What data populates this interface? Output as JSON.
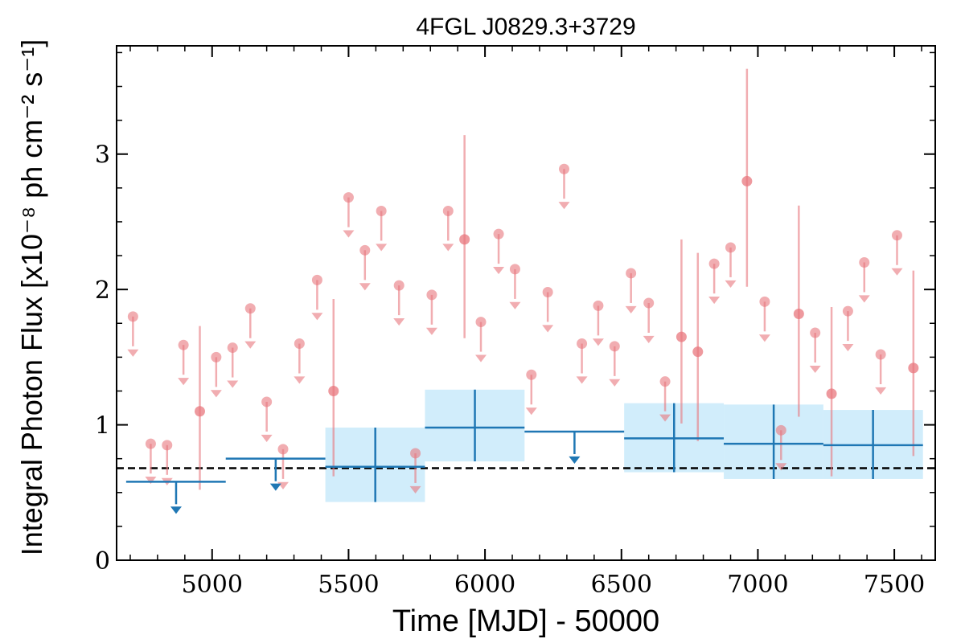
{
  "chart_data": {
    "type": "scatter",
    "title": "4FGL J0829.3+3729",
    "xlabel": "Time [MJD] - 50000",
    "ylabel": "Integral Photon Flux [x10⁻⁸ ph cm⁻² s⁻¹]",
    "xlim": [
      4650,
      7650
    ],
    "ylim": [
      0,
      3.8
    ],
    "xticks": [
      5000,
      5500,
      6000,
      6500,
      7000,
      7500
    ],
    "yticks": [
      0,
      1,
      2,
      3
    ],
    "grid": false,
    "legend": "none",
    "reference_line": {
      "y": 0.68,
      "style": "dashed",
      "color": "#000000"
    },
    "colors": {
      "fine": "#e8777d",
      "coarse": "#1f77b4",
      "band": "#c6e9fa"
    },
    "series": [
      {
        "bin": "fine",
        "upper_limits": [
          {
            "x": 4710,
            "y": 1.8
          },
          {
            "x": 4775,
            "y": 0.86
          },
          {
            "x": 4835,
            "y": 0.85
          },
          {
            "x": 4895,
            "y": 1.59
          },
          {
            "x": 5015,
            "y": 1.5
          },
          {
            "x": 5075,
            "y": 1.57
          },
          {
            "x": 5140,
            "y": 1.86
          },
          {
            "x": 5200,
            "y": 1.17
          },
          {
            "x": 5260,
            "y": 0.82
          },
          {
            "x": 5320,
            "y": 1.6
          },
          {
            "x": 5385,
            "y": 2.07
          },
          {
            "x": 5500,
            "y": 2.68
          },
          {
            "x": 5560,
            "y": 2.29
          },
          {
            "x": 5620,
            "y": 2.58
          },
          {
            "x": 5685,
            "y": 2.03
          },
          {
            "x": 5745,
            "y": 0.79
          },
          {
            "x": 5805,
            "y": 1.96
          },
          {
            "x": 5865,
            "y": 2.58
          },
          {
            "x": 5985,
            "y": 1.76
          },
          {
            "x": 6050,
            "y": 2.41
          },
          {
            "x": 6110,
            "y": 2.15
          },
          {
            "x": 6170,
            "y": 1.37
          },
          {
            "x": 6230,
            "y": 1.98
          },
          {
            "x": 6290,
            "y": 2.89
          },
          {
            "x": 6355,
            "y": 1.6
          },
          {
            "x": 6415,
            "y": 1.88
          },
          {
            "x": 6475,
            "y": 1.58
          },
          {
            "x": 6535,
            "y": 2.12
          },
          {
            "x": 6600,
            "y": 1.9
          },
          {
            "x": 6660,
            "y": 1.32
          },
          {
            "x": 6840,
            "y": 2.19
          },
          {
            "x": 6900,
            "y": 2.31
          },
          {
            "x": 7025,
            "y": 1.91
          },
          {
            "x": 7085,
            "y": 0.96
          },
          {
            "x": 7210,
            "y": 1.68
          },
          {
            "x": 7330,
            "y": 1.84
          },
          {
            "x": 7390,
            "y": 2.2
          },
          {
            "x": 7450,
            "y": 1.52
          },
          {
            "x": 7510,
            "y": 2.4
          }
        ],
        "detections": [
          {
            "x": 4955,
            "y": 1.1,
            "ylo": 0.52,
            "yhi": 1.73
          },
          {
            "x": 5445,
            "y": 1.25,
            "ylo": 0.62,
            "yhi": 1.93
          },
          {
            "x": 5925,
            "y": 2.37,
            "ylo": 1.64,
            "yhi": 3.14
          },
          {
            "x": 6720,
            "y": 1.65,
            "ylo": 1.01,
            "yhi": 2.37
          },
          {
            "x": 6780,
            "y": 1.54,
            "ylo": 0.88,
            "yhi": 2.27
          },
          {
            "x": 6960,
            "y": 2.8,
            "ylo": 2.02,
            "yhi": 3.63
          },
          {
            "x": 7150,
            "y": 1.82,
            "ylo": 1.06,
            "yhi": 2.62
          },
          {
            "x": 7270,
            "y": 1.23,
            "ylo": 0.62,
            "yhi": 1.87
          },
          {
            "x": 7570,
            "y": 1.42,
            "ylo": 0.77,
            "yhi": 2.14
          }
        ]
      },
      {
        "bin": "coarse",
        "upper_limits": [
          {
            "x0": 4685,
            "x1": 5050,
            "x": 4868,
            "y": 0.58
          },
          {
            "x0": 5050,
            "x1": 5415,
            "x": 5233,
            "y": 0.75
          },
          {
            "x0": 6145,
            "x1": 6510,
            "x": 6328,
            "y": 0.95
          }
        ],
        "detections": [
          {
            "x0": 5415,
            "x1": 5780,
            "x": 5598,
            "y": 0.69,
            "ylo": 0.43,
            "yhi": 0.98
          },
          {
            "x0": 5780,
            "x1": 6145,
            "x": 5963,
            "y": 0.98,
            "ylo": 0.73,
            "yhi": 1.26
          },
          {
            "x0": 6510,
            "x1": 6875,
            "x": 6693,
            "y": 0.9,
            "ylo": 0.65,
            "yhi": 1.16
          },
          {
            "x0": 6875,
            "x1": 7240,
            "x": 7058,
            "y": 0.86,
            "ylo": 0.6,
            "yhi": 1.15
          },
          {
            "x0": 7240,
            "x1": 7605,
            "x": 7422,
            "y": 0.85,
            "ylo": 0.6,
            "yhi": 1.11
          }
        ]
      }
    ]
  }
}
